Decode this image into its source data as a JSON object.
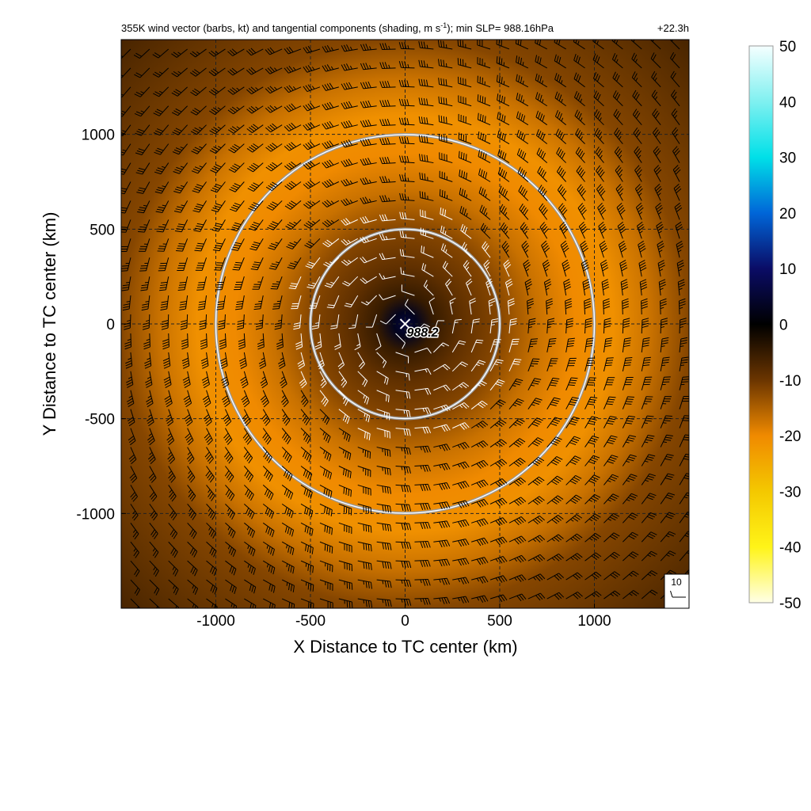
{
  "chart_data": {
    "type": "heatmap",
    "title": "355K wind vector (barbs, kt) and tangential components (shading, m s",
    "title_sup": "-1",
    "title_tail": "); min SLP= 988.16hPa",
    "time_label": "+22.3h",
    "xlabel": "X Distance to TC center (km)",
    "ylabel": "Y Distance to TC center (km)",
    "xlim": [
      -1500,
      1500
    ],
    "ylim": [
      -1500,
      1500
    ],
    "xticks": [
      -1000,
      -500,
      0,
      500,
      1000
    ],
    "yticks": [
      -1000,
      -500,
      0,
      500,
      1000
    ],
    "grid": true,
    "grid_style": "dashed",
    "center_marker": "x",
    "center_label": "988.2",
    "min_slp_hpa": 988.16,
    "range_rings_km": [
      500,
      1000
    ],
    "colorbar": {
      "min": -50,
      "max": 50,
      "ticks": [
        50,
        40,
        30,
        20,
        10,
        0,
        -10,
        -20,
        -30,
        -40,
        -50
      ],
      "colors": [
        {
          "value": 50,
          "color": "#f5ffff"
        },
        {
          "value": 40,
          "color": "#7ff0f0"
        },
        {
          "value": 30,
          "color": "#00e0e8"
        },
        {
          "value": 20,
          "color": "#0066d8"
        },
        {
          "value": 10,
          "color": "#0a0c66"
        },
        {
          "value": 0,
          "color": "#000000"
        },
        {
          "value": -10,
          "color": "#6b3500"
        },
        {
          "value": -20,
          "color": "#f08a00"
        },
        {
          "value": -30,
          "color": "#f4c800"
        },
        {
          "value": -40,
          "color": "#fff418"
        },
        {
          "value": -50,
          "color": "#ffffe6"
        }
      ]
    },
    "tangential_wind_profile": [
      {
        "r_km": 0,
        "value": 6
      },
      {
        "r_km": 60,
        "value": 3
      },
      {
        "r_km": 150,
        "value": -5
      },
      {
        "r_km": 300,
        "value": -9
      },
      {
        "r_km": 500,
        "value": -12
      },
      {
        "r_km": 700,
        "value": -17
      },
      {
        "r_km": 900,
        "value": -20
      },
      {
        "r_km": 1100,
        "value": -21
      },
      {
        "r_km": 1300,
        "value": -17
      },
      {
        "r_km": 1500,
        "value": -12
      },
      {
        "r_km": 2200,
        "value": -6
      }
    ],
    "wind_barbs": {
      "unit": "kt",
      "reference_speed_kt": 10,
      "reference_label": "10",
      "grid_spacing_km": 100,
      "flow": "anticyclonic",
      "speed_profile_kt": [
        {
          "r_km": 0,
          "speed": 5
        },
        {
          "r_km": 300,
          "speed": 18
        },
        {
          "r_km": 700,
          "speed": 35
        },
        {
          "r_km": 1000,
          "speed": 42
        },
        {
          "r_km": 1300,
          "speed": 38
        },
        {
          "r_km": 2200,
          "speed": 15
        }
      ]
    }
  }
}
